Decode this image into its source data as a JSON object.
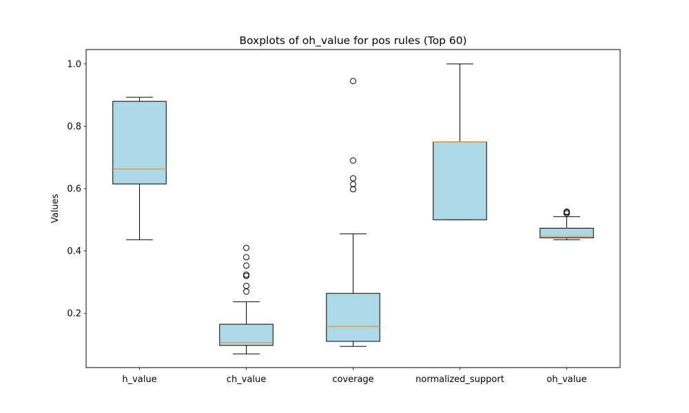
{
  "chart_data": {
    "type": "boxplot",
    "title": "Boxplots of oh_value for pos rules (Top 60)",
    "xlabel": "",
    "ylabel": "Values",
    "ylim": [
      0.026,
      1.046
    ],
    "yticks": [
      0.2,
      0.4,
      0.6,
      0.8,
      1.0
    ],
    "ytick_labels": [
      "0.2",
      "0.4",
      "0.6",
      "0.8",
      "1.0"
    ],
    "grid": false,
    "legend": "none",
    "colors": {
      "box_fill": "#add8e6",
      "median": "#ff7f0e",
      "lines": "#000000"
    },
    "boxes": [
      {
        "label": "h_value",
        "whisker_low": 0.436,
        "q1": 0.615,
        "median": 0.663,
        "q3": 0.88,
        "whisker_high": 0.893,
        "outliers": []
      },
      {
        "label": "ch_value",
        "whisker_low": 0.07,
        "q1": 0.097,
        "median": 0.106,
        "q3": 0.165,
        "whisker_high": 0.237,
        "outliers": [
          0.27,
          0.288,
          0.32,
          0.324,
          0.353,
          0.38,
          0.41
        ]
      },
      {
        "label": "coverage",
        "whisker_low": 0.094,
        "q1": 0.11,
        "median": 0.158,
        "q3": 0.264,
        "whisker_high": 0.455,
        "outliers": [
          0.598,
          0.614,
          0.633,
          0.69,
          0.945
        ]
      },
      {
        "label": "normalized_support",
        "whisker_low": 0.5,
        "q1": 0.5,
        "median": 0.75,
        "q3": 0.75,
        "whisker_high": 1.0,
        "outliers": []
      },
      {
        "label": "oh_value",
        "whisker_low": 0.436,
        "q1": 0.442,
        "median": 0.447,
        "q3": 0.473,
        "whisker_high": 0.51,
        "outliers": [
          0.52,
          0.524,
          0.526
        ]
      }
    ]
  }
}
